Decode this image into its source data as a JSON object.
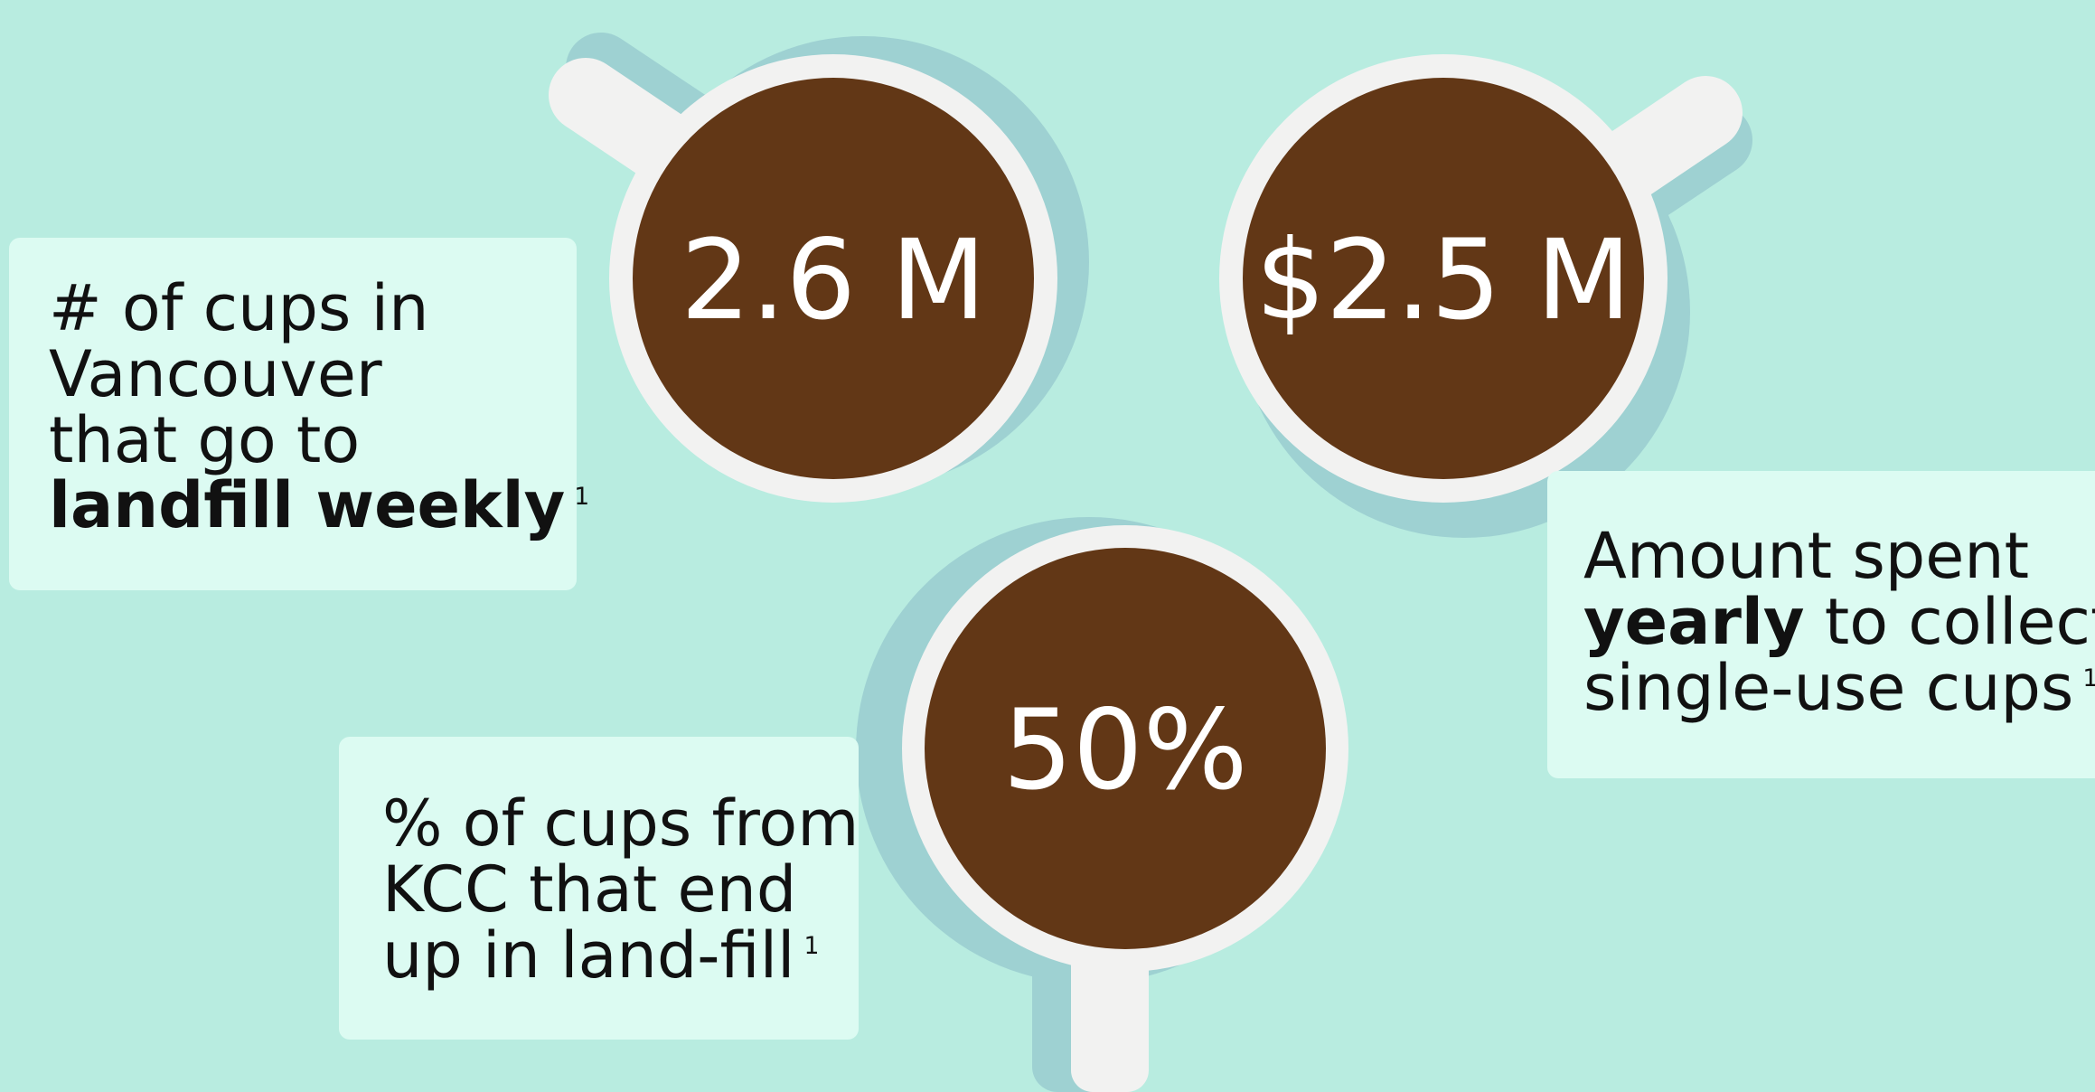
{
  "stats": {
    "weekly_cups": "2.6 M",
    "yearly_cost": "$2.5 M",
    "kcc_percent": "50%"
  },
  "cards": {
    "landfill": {
      "line1": "# of cups in",
      "line2": "Vancouver",
      "line3": "that go to",
      "line4_bold": "landfill weekly",
      "ref": "1"
    },
    "spent": {
      "line1": "Amount spent",
      "line2_bold": "yearly",
      "line2_rest": " to collect",
      "line3": "single-use cups",
      "ref": "1"
    },
    "kcc": {
      "line1": "% of cups from",
      "line2": "KCC that end",
      "line3": "up in land-fill",
      "ref": "1"
    }
  },
  "colors": {
    "background": "#b8ece0",
    "card": "#dcfbf2",
    "cup_shadow": "#9ed1d2",
    "cup_rim": "#f2f2f1",
    "coffee": "#623716",
    "text": "#111111",
    "stat_text": "#ffffff"
  }
}
